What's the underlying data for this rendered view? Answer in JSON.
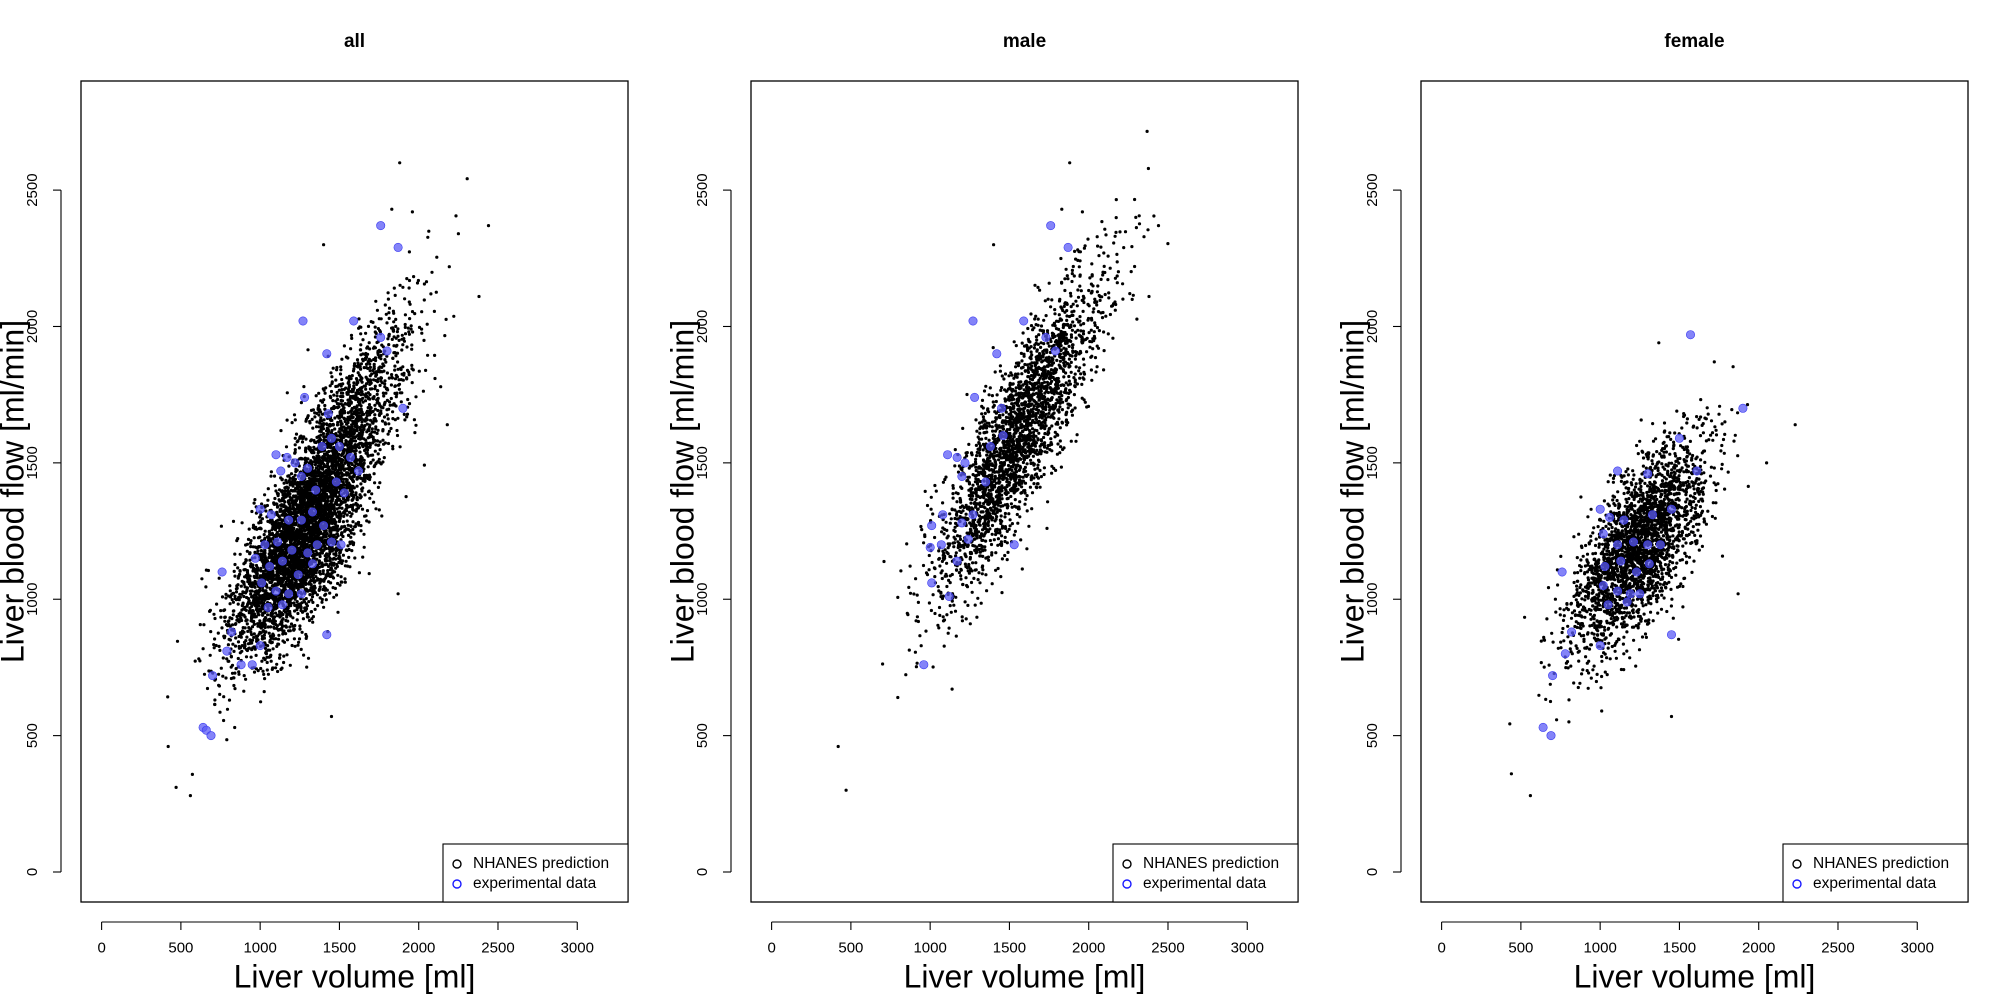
{
  "chart_data": [
    {
      "type": "scatter",
      "title": "all",
      "xlabel": "Liver volume [ml]",
      "ylabel": "Liver blood flow [ml/min]",
      "xlim": [
        -130,
        3320
      ],
      "ylim": [
        -110,
        2900
      ],
      "xticks": [
        0,
        500,
        1000,
        1500,
        2000,
        2500,
        3000
      ],
      "yticks": [
        0,
        500,
        1000,
        1500,
        2000,
        2500
      ],
      "legend": {
        "position": "bottom-right",
        "entries": [
          "NHANES prediction",
          "experimental data"
        ]
      },
      "grid": false,
      "series": [
        {
          "name": "NHANES prediction",
          "color": "#000000",
          "marker": "dot",
          "approx_points": 5200,
          "cloud": [
            {
              "n": 2600,
              "x_mean": 1420,
              "x_sd": 260,
              "y_slope": 0.95,
              "y_intercept": 100,
              "y_resid_sd": 155
            },
            {
              "n": 2600,
              "x_mean": 1230,
              "x_sd": 210,
              "y_slope": 0.62,
              "y_intercept": 420,
              "y_resid_sd": 140
            }
          ],
          "notable_points": [
            {
              "x": 1880,
              "y": 2600
            },
            {
              "x": 2440,
              "y": 2370
            },
            {
              "x": 1830,
              "y": 2430
            },
            {
              "x": 1960,
              "y": 2420
            },
            {
              "x": 1400,
              "y": 2300
            },
            {
              "x": 2380,
              "y": 2110
            },
            {
              "x": 420,
              "y": 460
            },
            {
              "x": 470,
              "y": 310
            },
            {
              "x": 560,
              "y": 280
            },
            {
              "x": 1450,
              "y": 570
            },
            {
              "x": 1870,
              "y": 1020
            },
            {
              "x": 2180,
              "y": 1640
            }
          ]
        },
        {
          "name": "experimental data",
          "color": "#5b5bf5",
          "marker": "circle",
          "points": [
            [
              1760,
              2370
            ],
            [
              1870,
              2290
            ],
            [
              1270,
              2020
            ],
            [
              1590,
              2020
            ],
            [
              1760,
              1960
            ],
            [
              1420,
              1900
            ],
            [
              1800,
              1910
            ],
            [
              1900,
              1700
            ],
            [
              1280,
              1740
            ],
            [
              1430,
              1680
            ],
            [
              1100,
              1530
            ],
            [
              1170,
              1520
            ],
            [
              1220,
              1500
            ],
            [
              1300,
              1480
            ],
            [
              1390,
              1560
            ],
            [
              1450,
              1590
            ],
            [
              1500,
              1560
            ],
            [
              1570,
              1520
            ],
            [
              1620,
              1470
            ],
            [
              1130,
              1470
            ],
            [
              1260,
              1450
            ],
            [
              1350,
              1400
            ],
            [
              1480,
              1430
            ],
            [
              1530,
              1390
            ],
            [
              1000,
              1330
            ],
            [
              1070,
              1310
            ],
            [
              1180,
              1290
            ],
            [
              1260,
              1290
            ],
            [
              1330,
              1320
            ],
            [
              1400,
              1270
            ],
            [
              1030,
              1200
            ],
            [
              1110,
              1210
            ],
            [
              1200,
              1180
            ],
            [
              1300,
              1170
            ],
            [
              1360,
              1200
            ],
            [
              1450,
              1210
            ],
            [
              1510,
              1200
            ],
            [
              970,
              1150
            ],
            [
              1060,
              1120
            ],
            [
              1140,
              1140
            ],
            [
              1240,
              1090
            ],
            [
              1330,
              1130
            ],
            [
              760,
              1100
            ],
            [
              1010,
              1060
            ],
            [
              1100,
              1030
            ],
            [
              1180,
              1020
            ],
            [
              1260,
              1020
            ],
            [
              1050,
              970
            ],
            [
              1140,
              980
            ],
            [
              1420,
              870
            ],
            [
              820,
              880
            ],
            [
              790,
              810
            ],
            [
              950,
              760
            ],
            [
              880,
              760
            ],
            [
              1000,
              830
            ],
            [
              700,
              720
            ],
            [
              640,
              530
            ],
            [
              660,
              520
            ],
            [
              690,
              500
            ]
          ]
        }
      ]
    },
    {
      "type": "scatter",
      "title": "male",
      "xlabel": "Liver volume [ml]",
      "ylabel": "Liver blood flow [ml/min]",
      "xlim": [
        -130,
        3320
      ],
      "ylim": [
        -110,
        2900
      ],
      "xticks": [
        0,
        500,
        1000,
        1500,
        2000,
        2500,
        3000
      ],
      "yticks": [
        0,
        500,
        1000,
        1500,
        2000,
        2500
      ],
      "legend": {
        "position": "bottom-right",
        "entries": [
          "NHANES prediction",
          "experimental data"
        ]
      },
      "grid": false,
      "series": [
        {
          "name": "NHANES prediction",
          "color": "#000000",
          "marker": "dot",
          "approx_points": 2600,
          "cloud": [
            {
              "n": 2600,
              "x_mean": 1550,
              "x_sd": 260,
              "y_slope": 0.95,
              "y_intercept": 120,
              "y_resid_sd": 150
            }
          ],
          "notable_points": [
            {
              "x": 1880,
              "y": 2600
            },
            {
              "x": 2440,
              "y": 2370
            },
            {
              "x": 1830,
              "y": 2430
            },
            {
              "x": 1960,
              "y": 2420
            },
            {
              "x": 1400,
              "y": 2300
            },
            {
              "x": 2380,
              "y": 2110
            },
            {
              "x": 420,
              "y": 460
            },
            {
              "x": 470,
              "y": 300
            }
          ]
        },
        {
          "name": "experimental data",
          "color": "#5b5bf5",
          "marker": "circle",
          "points": [
            [
              1760,
              2370
            ],
            [
              1870,
              2290
            ],
            [
              1270,
              2020
            ],
            [
              1590,
              2020
            ],
            [
              1730,
              1960
            ],
            [
              1420,
              1900
            ],
            [
              1790,
              1910
            ],
            [
              1280,
              1740
            ],
            [
              1450,
              1700
            ],
            [
              1110,
              1530
            ],
            [
              1170,
              1520
            ],
            [
              1220,
              1500
            ],
            [
              1380,
              1560
            ],
            [
              1460,
              1600
            ],
            [
              1200,
              1450
            ],
            [
              1350,
              1430
            ],
            [
              1080,
              1310
            ],
            [
              1200,
              1280
            ],
            [
              1270,
              1310
            ],
            [
              1010,
              1270
            ],
            [
              1000,
              1190
            ],
            [
              1070,
              1200
            ],
            [
              1170,
              1140
            ],
            [
              1240,
              1220
            ],
            [
              1530,
              1200
            ],
            [
              1010,
              1060
            ],
            [
              1120,
              1010
            ],
            [
              960,
              760
            ]
          ]
        }
      ]
    },
    {
      "type": "scatter",
      "title": "female",
      "xlabel": "Liver volume [ml]",
      "ylabel": "Liver blood flow [ml/min]",
      "xlim": [
        -130,
        3320
      ],
      "ylim": [
        -110,
        2900
      ],
      "xticks": [
        0,
        500,
        1000,
        1500,
        2000,
        2500,
        3000
      ],
      "yticks": [
        0,
        500,
        1000,
        1500,
        2000,
        2500
      ],
      "legend": {
        "position": "bottom-right",
        "entries": [
          "NHANES prediction",
          "experimental data"
        ]
      },
      "grid": false,
      "series": [
        {
          "name": "NHANES prediction",
          "color": "#000000",
          "marker": "dot",
          "approx_points": 2600,
          "cloud": [
            {
              "n": 2600,
              "x_mean": 1240,
              "x_sd": 210,
              "y_slope": 0.62,
              "y_intercept": 420,
              "y_resid_sd": 140
            }
          ],
          "notable_points": [
            {
              "x": 1370,
              "y": 1940
            },
            {
              "x": 1720,
              "y": 1870
            },
            {
              "x": 2230,
              "y": 1640
            },
            {
              "x": 2050,
              "y": 1500
            },
            {
              "x": 1450,
              "y": 570
            },
            {
              "x": 1870,
              "y": 1020
            },
            {
              "x": 560,
              "y": 280
            },
            {
              "x": 440,
              "y": 360
            }
          ]
        },
        {
          "name": "experimental data",
          "color": "#5b5bf5",
          "marker": "circle",
          "points": [
            [
              1570,
              1970
            ],
            [
              1900,
              1700
            ],
            [
              1500,
              1590
            ],
            [
              1110,
              1470
            ],
            [
              1300,
              1460
            ],
            [
              1610,
              1470
            ],
            [
              1000,
              1330
            ],
            [
              1060,
              1300
            ],
            [
              1150,
              1290
            ],
            [
              1330,
              1310
            ],
            [
              1450,
              1330
            ],
            [
              1020,
              1240
            ],
            [
              1110,
              1200
            ],
            [
              1210,
              1210
            ],
            [
              1300,
              1200
            ],
            [
              1380,
              1200
            ],
            [
              1030,
              1120
            ],
            [
              1130,
              1140
            ],
            [
              1230,
              1100
            ],
            [
              1310,
              1130
            ],
            [
              760,
              1100
            ],
            [
              1020,
              1050
            ],
            [
              1110,
              1030
            ],
            [
              1190,
              1020
            ],
            [
              1250,
              1020
            ],
            [
              1050,
              980
            ],
            [
              1170,
              990
            ],
            [
              1450,
              870
            ],
            [
              820,
              880
            ],
            [
              780,
              800
            ],
            [
              1000,
              830
            ],
            [
              700,
              720
            ],
            [
              640,
              530
            ],
            [
              690,
              500
            ]
          ]
        }
      ]
    }
  ]
}
